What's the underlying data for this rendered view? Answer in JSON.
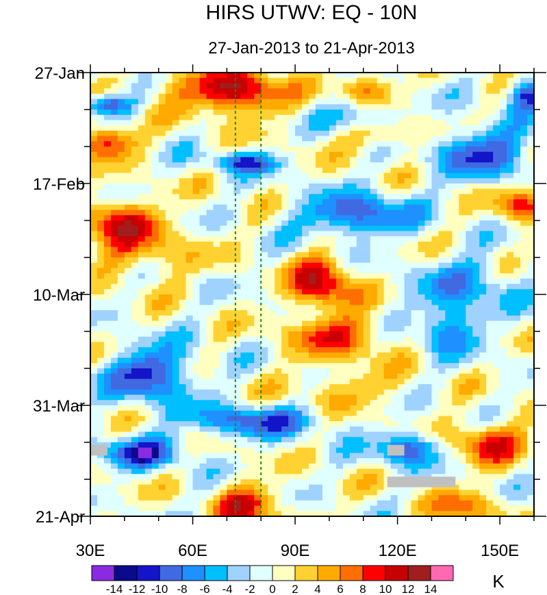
{
  "chart_data": {
    "type": "heatmap",
    "title": "HIRS UTWV: EQ - 10N",
    "subtitle": "27-Jan-2013 to 21-Apr-2013",
    "xlabel": "",
    "ylabel": "",
    "x_range": [
      30,
      160
    ],
    "x_ticks": [
      {
        "value": 30,
        "label": "30E"
      },
      {
        "value": 60,
        "label": "60E"
      },
      {
        "value": 90,
        "label": "90E"
      },
      {
        "value": 120,
        "label": "120E"
      },
      {
        "value": 150,
        "label": "150E"
      }
    ],
    "y_range_days": [
      0,
      84
    ],
    "y_ticks": [
      {
        "day": 0,
        "label": "27-Jan"
      },
      {
        "day": 21,
        "label": "17-Feb"
      },
      {
        "day": 42,
        "label": "10-Mar"
      },
      {
        "day": 63,
        "label": "31-Mar"
      },
      {
        "day": 84,
        "label": "21-Apr"
      }
    ],
    "reference_lines_longitude": [
      72.5,
      80
    ],
    "colorbar": {
      "unit": "K",
      "levels": [
        -14,
        -12,
        -10,
        -8,
        -6,
        -4,
        -2,
        0,
        2,
        4,
        6,
        8,
        10,
        12,
        14
      ],
      "level_labels": [
        "-14",
        "-12",
        "-10",
        "-8",
        "-6",
        "-4",
        "-2",
        "0",
        "2",
        "4",
        "6",
        "8",
        "10",
        "12",
        "14"
      ],
      "colors": [
        "#8a2be2",
        "#0a0a8c",
        "#1414c8",
        "#4169e1",
        "#1e90ff",
        "#00bfff",
        "#a0d2ff",
        "#e0ffff",
        "#ffffc0",
        "#ffd232",
        "#ffaa00",
        "#ff6e00",
        "#ff0000",
        "#c80000",
        "#a01e1e",
        "#ff69b4"
      ]
    },
    "features": [
      {
        "lon": 75,
        "day": 4,
        "value": 9,
        "r_lon": 12,
        "r_day": 4
      },
      {
        "lon": 64,
        "day": 3,
        "value": 6,
        "r_lon": 16,
        "r_day": 4
      },
      {
        "lon": 35,
        "day": 13,
        "value": 10,
        "r_lon": 8,
        "r_day": 3
      },
      {
        "lon": 38,
        "day": 28,
        "value": 9,
        "r_lon": 12,
        "r_day": 4
      },
      {
        "lon": 45,
        "day": 34,
        "value": 5,
        "r_lon": 15,
        "r_day": 5
      },
      {
        "lon": 98,
        "day": 40,
        "value": 11,
        "r_lon": 9,
        "r_day": 5
      },
      {
        "lon": 103,
        "day": 50,
        "value": 8,
        "r_lon": 14,
        "r_day": 4
      },
      {
        "lon": 110,
        "day": 3,
        "value": 7,
        "r_lon": 8,
        "r_day": 3
      },
      {
        "lon": 118,
        "day": 12,
        "value": 5,
        "r_lon": 12,
        "r_day": 3
      },
      {
        "lon": 157,
        "day": 25,
        "value": 9,
        "r_lon": 8,
        "r_day": 3
      },
      {
        "lon": 147,
        "day": 70,
        "value": 9,
        "r_lon": 10,
        "r_day": 4
      },
      {
        "lon": 76,
        "day": 82,
        "value": 9,
        "r_lon": 9,
        "r_day": 4
      },
      {
        "lon": 140,
        "day": 82,
        "value": 6,
        "r_lon": 10,
        "r_day": 3
      },
      {
        "lon": 105,
        "day": 60,
        "value": 4,
        "r_lon": 16,
        "r_day": 4
      },
      {
        "lon": 35,
        "day": 6,
        "value": -11,
        "r_lon": 7,
        "r_day": 2
      },
      {
        "lon": 75,
        "day": 17,
        "value": -9,
        "r_lon": 10,
        "r_day": 2
      },
      {
        "lon": 48,
        "day": 57,
        "value": -11,
        "r_lon": 12,
        "r_day": 5
      },
      {
        "lon": 45,
        "day": 72,
        "value": -10,
        "r_lon": 12,
        "r_day": 3
      },
      {
        "lon": 78,
        "day": 66,
        "value": -9,
        "r_lon": 20,
        "r_day": 3
      },
      {
        "lon": 123,
        "day": 71,
        "value": -10,
        "r_lon": 9,
        "r_day": 3
      },
      {
        "lon": 108,
        "day": 27,
        "value": -10,
        "r_lon": 16,
        "r_day": 4
      },
      {
        "lon": 145,
        "day": 15,
        "value": -9,
        "r_lon": 15,
        "r_day": 5
      },
      {
        "lon": 135,
        "day": 48,
        "value": -7,
        "r_lon": 10,
        "r_day": 5
      },
      {
        "lon": 158,
        "day": 4,
        "value": -10,
        "r_lon": 6,
        "r_day": 3
      },
      {
        "lon": 110,
        "day": 8,
        "value": -6,
        "r_lon": 10,
        "r_day": 3
      },
      {
        "lon": 140,
        "day": 40,
        "value": -6,
        "r_lon": 14,
        "r_day": 5
      }
    ],
    "missing_data_regions": [
      {
        "lon_min": 30,
        "lon_max": 35,
        "day_min": 70.5,
        "day_max": 72.5
      },
      {
        "lon_min": 117,
        "lon_max": 122,
        "day_min": 70.5,
        "day_max": 72.5
      },
      {
        "lon_min": 117,
        "lon_max": 137,
        "day_min": 76.5,
        "day_max": 78.5
      }
    ]
  }
}
